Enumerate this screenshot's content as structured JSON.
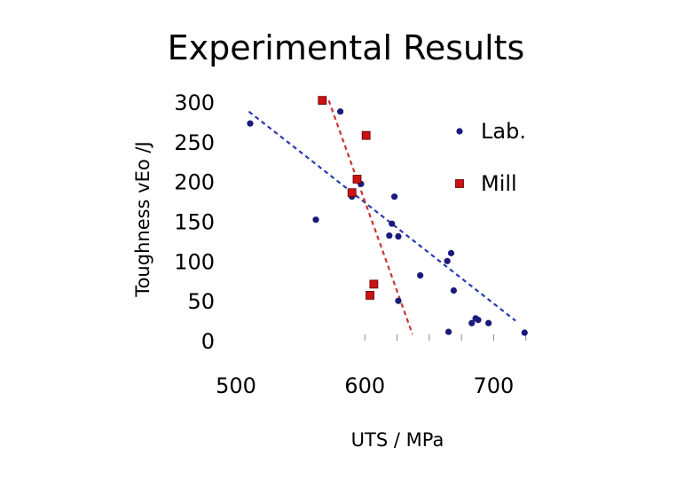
{
  "chart_data": {
    "type": "scatter",
    "title": "Experimental Results",
    "xlabel": "UTS / MPa",
    "ylabel": "Toughness vEo /J",
    "xlim": [
      500,
      730
    ],
    "ylim": [
      0,
      300
    ],
    "xticks": [
      500,
      600,
      700
    ],
    "xtick_labels": [
      "500",
      "600",
      "700"
    ],
    "yticks": [
      0,
      50,
      100,
      150,
      200,
      250,
      300
    ],
    "ytick_labels": [
      "0",
      "50",
      "100",
      "150",
      "200",
      "250",
      "300"
    ],
    "legend_position": "top-right",
    "series": [
      {
        "name": "Lab.",
        "marker": "circle",
        "color": "#1a1a7a",
        "trend_color": "#2a3ab0",
        "points": [
          [
            511,
            273
          ],
          [
            562,
            152
          ],
          [
            581,
            288
          ],
          [
            590,
            181
          ],
          [
            597,
            197
          ],
          [
            619,
            132
          ],
          [
            621,
            147
          ],
          [
            623,
            181
          ],
          [
            626,
            131
          ],
          [
            626,
            50
          ],
          [
            643,
            82
          ],
          [
            665,
            11
          ],
          [
            664,
            100
          ],
          [
            667,
            110
          ],
          [
            669,
            63
          ],
          [
            683,
            22
          ],
          [
            686,
            28
          ],
          [
            688,
            26
          ],
          [
            696,
            22
          ],
          [
            724,
            10
          ]
        ],
        "trend": [
          [
            510,
            288
          ],
          [
            717,
            25
          ]
        ]
      },
      {
        "name": "Mill",
        "marker": "square",
        "color": "#cc1111",
        "trend_color": "#cc3333",
        "points": [
          [
            567,
            302
          ],
          [
            601,
            258
          ],
          [
            594,
            203
          ],
          [
            590,
            186
          ],
          [
            607,
            71
          ],
          [
            604,
            57
          ]
        ],
        "trend": [
          [
            572,
            302
          ],
          [
            637,
            8
          ]
        ]
      }
    ]
  }
}
